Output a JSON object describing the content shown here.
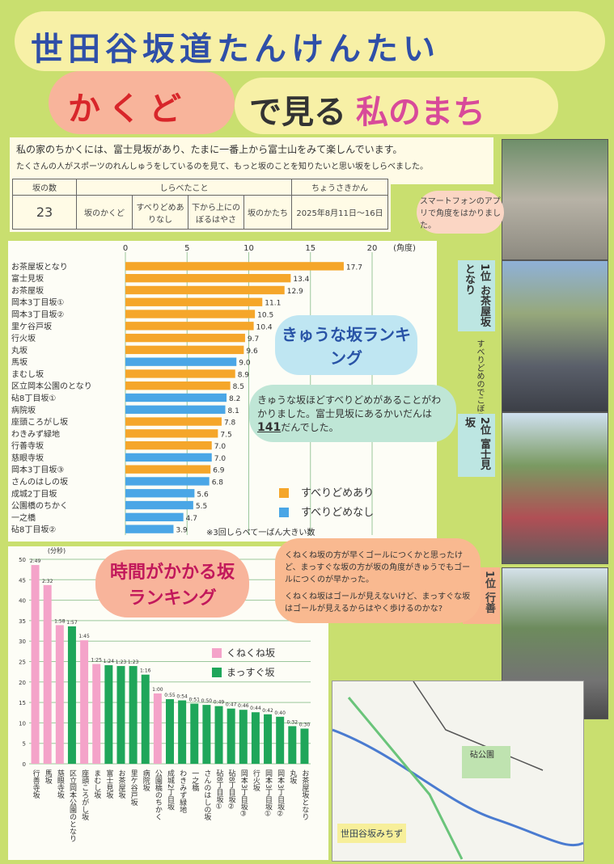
{
  "header": {
    "title": "世田谷坂道たんけんたい",
    "subtitle": [
      "かくど",
      "で見る",
      "私のまち"
    ]
  },
  "intro": [
    "私の家のちかくには、富士見坂があり、たまに一番上から富士山をみて楽しんでいます。",
    "たくさんの人がスポーツのれんしゅうをしているのを見て、もっと坂のことを知りたいと思い坂をしらべました。"
  ],
  "table": {
    "header": [
      "坂の数",
      "しらべたこと",
      "ちょうさきかん"
    ],
    "row": [
      "23",
      "坂のかくど",
      "すべりどめありなし",
      "下から上にのぼるはやさ",
      "坂のかたち",
      "2025年8月11日〜16日"
    ]
  },
  "chart_data": [
    {
      "type": "bar",
      "orientation": "horizontal",
      "title": "きゅうな坂ランキング",
      "x_label": "(角度)",
      "categories": [
        "お茶屋坂となり",
        "富士見坂",
        "お茶屋坂",
        "岡本3丁目坂①",
        "岡本3丁目坂②",
        "里ケ谷戸坂",
        "行火坂",
        "丸坂",
        "馬坂",
        "まむし坂",
        "区立岡本公園のとなり",
        "砧8丁目坂①",
        "病院坂",
        "座頭ころがし坂",
        "わきみず緑地",
        "行善寺坂",
        "慈眼寺坂",
        "岡本3丁目坂③",
        "さんのはしの坂",
        "成城2丁目坂",
        "公園橋のちかく",
        "一之橋",
        "砧8丁目坂②"
      ],
      "series": [
        {
          "name": "すべりどめあり",
          "color": "#f5a62a",
          "values": [
            17.7,
            13.4,
            12.9,
            11.1,
            10.5,
            10.4,
            9.7,
            9.6,
            null,
            8.9,
            8.5,
            null,
            null,
            7.8,
            7.5,
            7.0,
            null,
            6.9,
            null,
            null,
            null,
            null,
            null
          ],
          "value_labels": [
            "17.7",
            "13.4",
            "12.9",
            "11.1",
            "10.5",
            "10.4",
            "9.7",
            "9.6",
            null,
            "8.9",
            "8.5",
            null,
            null,
            "7.8",
            "7.5",
            "7.0",
            null,
            "6.9",
            null,
            null,
            null,
            null,
            null
          ]
        },
        {
          "name": "すべりどめなし",
          "color": "#4aa6e6",
          "values": [
            null,
            null,
            null,
            null,
            null,
            null,
            null,
            null,
            9.0,
            null,
            null,
            8.2,
            8.1,
            null,
            null,
            null,
            7.0,
            null,
            6.8,
            5.6,
            5.5,
            4.7,
            3.9
          ],
          "value_labels": [
            null,
            null,
            null,
            null,
            null,
            null,
            null,
            null,
            "9.0",
            null,
            null,
            "8.2",
            "8.1",
            null,
            null,
            null,
            "7.0",
            null,
            "6.8",
            "5.6",
            "5.5",
            "4.7",
            "3.9"
          ]
        }
      ],
      "xlim": [
        0,
        20
      ],
      "xticks": [
        0,
        5,
        10,
        15,
        20
      ],
      "grid": true,
      "note": "※3回しらべて一ばん大きい数"
    },
    {
      "type": "bar",
      "orientation": "vertical",
      "title": "時間がかかる坂ランキング",
      "y_label": "(分秒)",
      "categories": [
        "行善寺坂",
        "馬坂",
        "慈眼寺坂",
        "区立岡本公園のとなり",
        "座頭ころがし坂",
        "まむし坂",
        "富士見坂",
        "お茶屋坂",
        "里ケ谷戸坂",
        "病院坂",
        "公園橋のちかく",
        "成城2丁目坂",
        "わきみず緑地",
        "一之橋",
        "さんのはしの坂",
        "砧8丁目坂①",
        "砧8丁目坂②",
        "岡本3丁目坂③",
        "行火坂",
        "岡本3丁目坂①",
        "岡本3丁目坂②",
        "丸坂",
        "お茶屋坂となり"
      ],
      "series": [
        {
          "name": "くねくね坂",
          "color": "#f4a3c9",
          "values": [
            48.6,
            43.7,
            33.9,
            null,
            30.2,
            24.4,
            null,
            null,
            null,
            null,
            17.2,
            null,
            null,
            null,
            null,
            null,
            null,
            null,
            null,
            null,
            null,
            null,
            null
          ],
          "value_labels": [
            "2:49",
            "2:32",
            "1:58",
            null,
            "1:45",
            "1:25",
            null,
            null,
            null,
            null,
            "1:00",
            null,
            null,
            null,
            null,
            null,
            null,
            null,
            null,
            null,
            null,
            null,
            null
          ]
        },
        {
          "name": "まっすぐ坂",
          "color": "#1fa65a",
          "values": [
            null,
            null,
            null,
            33.6,
            null,
            null,
            24.1,
            23.9,
            23.9,
            21.8,
            null,
            15.8,
            15.5,
            14.7,
            14.4,
            14.1,
            13.5,
            13.2,
            12.6,
            12.1,
            11.5,
            9.2,
            8.6
          ],
          "value_labels": [
            null,
            null,
            null,
            "1:57",
            null,
            null,
            "1:24",
            "1:23",
            "1:23",
            "1:16",
            null,
            "0:55",
            "0:54",
            "0:51",
            "0:50",
            "0:49",
            "0:47",
            "0:46",
            "0:44",
            "0:42",
            "0:40",
            "0:32",
            "0:30"
          ]
        }
      ],
      "ylim": [
        0,
        50
      ],
      "yticks": [
        0,
        5,
        10,
        15,
        20,
        25,
        30,
        35,
        40,
        45,
        50
      ],
      "grid": true
    }
  ],
  "notes": {
    "app": "スマートフォンのアプリで角度をはかりました。",
    "bumps": "すべりどめのでこぼこ",
    "rank_steep_1": [
      "1位",
      "お茶屋坂となり"
    ],
    "rank_steep_2": [
      "2位",
      "富士見坂"
    ],
    "rank_time_1": [
      "1位",
      "行善寺坂"
    ],
    "bubble_steep": [
      "きゅうな坂ほどすべりどめがあることがわかりました。",
      "富士見坂にあるかいだんは",
      "141",
      "だんでした。"
    ],
    "bubble_time": [
      "くねくね坂の方が早くゴールにつくかと思ったけど、まっすぐな坂の方が坂の角度がきゅうでもゴールにつくのが早かった。",
      "くねくね坂はゴールが見えないけど、まっすぐな坂はゴールが見えるからはやく歩けるのかな?"
    ],
    "map_title": "世田谷坂みちず",
    "map_park": "砧公園"
  }
}
